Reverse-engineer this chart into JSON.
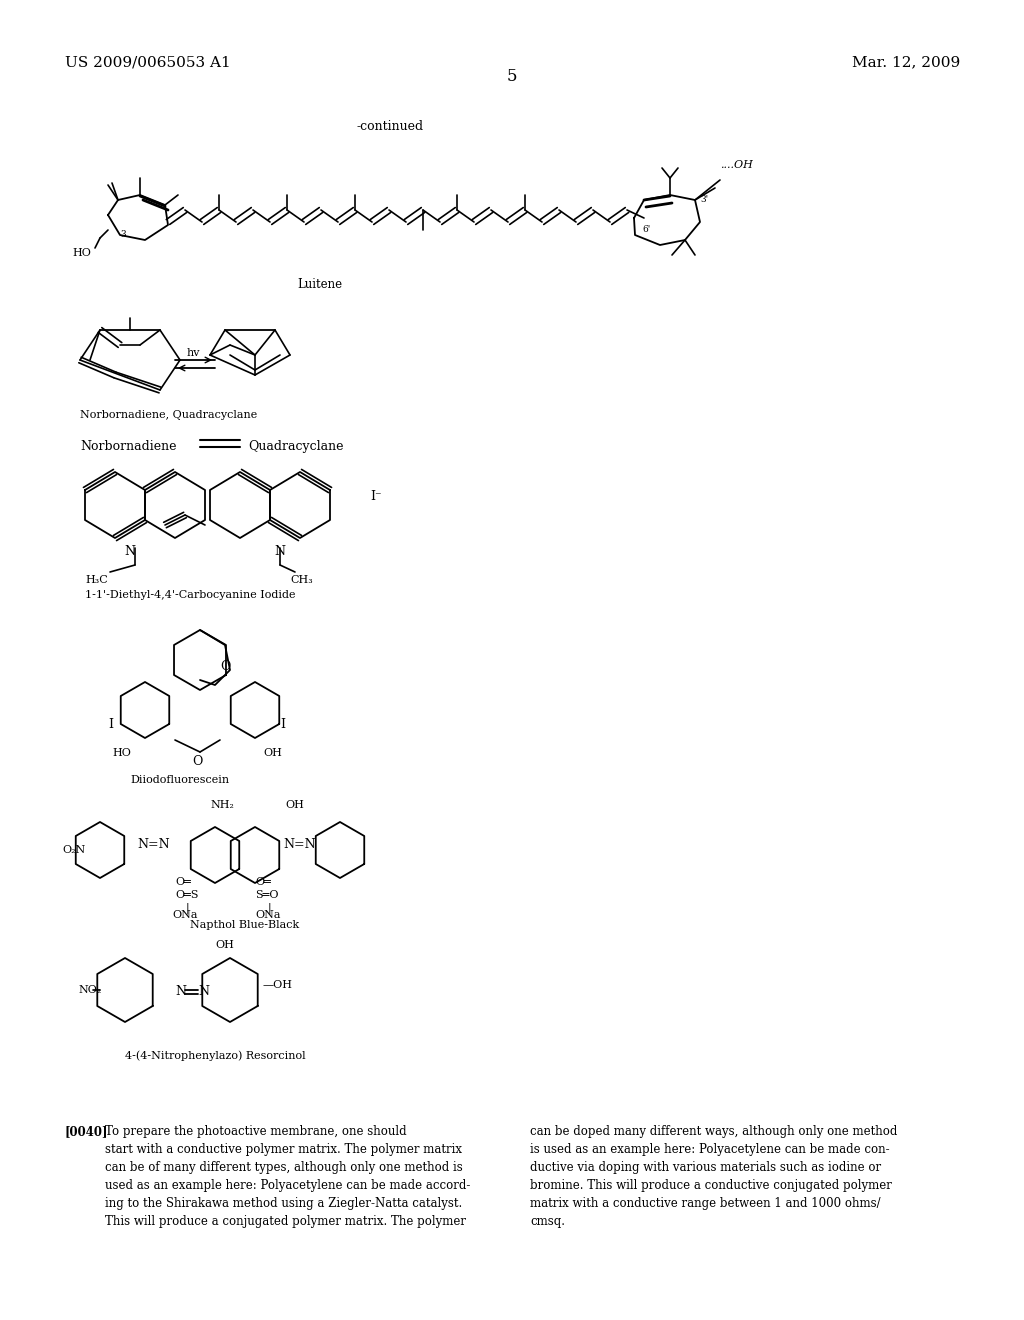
{
  "bg_color": "#ffffff",
  "header_left": "US 2009/0065053 A1",
  "header_right": "Mar. 12, 2009",
  "page_number": "5",
  "continued_label": "-continued",
  "luitene_label": "Luitene",
  "norbornadiene_label": "Norbornadiene, Quadracyclane",
  "norbornadiene_eq": "Norbornadiene",
  "quadracyclane_eq": "Quadracyclane",
  "carbocyanine_label": "1-1'-Diethyl-4,4'-Carbocyanine Iodide",
  "diiodofluorescein_label": "Diiodofluorescein",
  "naphtholbb_label": "Napthol Blue-Black",
  "resorcinol_label": "4-(4-Nitrophenylazo) Resorcinol",
  "paragraph_label": "[0040]",
  "paragraph_text_left": "To prepare the photoactive membrane, one should\nstart with a conductive polymer matrix. The polymer matrix\ncan be of many different types, although only one method is\nused as an example here: Polyacetylene can be made accord-\ning to the Shirakawa method using a Ziegler-Natta catalyst.\nThis will produce a conjugated polymer matrix. The polymer",
  "paragraph_text_right": "can be doped many different ways, although only one method\nis used as an example here: Polyacetylene can be made con-\nductive via doping with various materials such as iodine or\nbromine. This will produce a conductive conjugated polymer\nmatrix with a conductive range between 1 and 1000 ohms/\ncmsq.",
  "font_size_header": 11,
  "font_size_body": 8.5,
  "font_size_label": 8,
  "font_size_page": 12
}
